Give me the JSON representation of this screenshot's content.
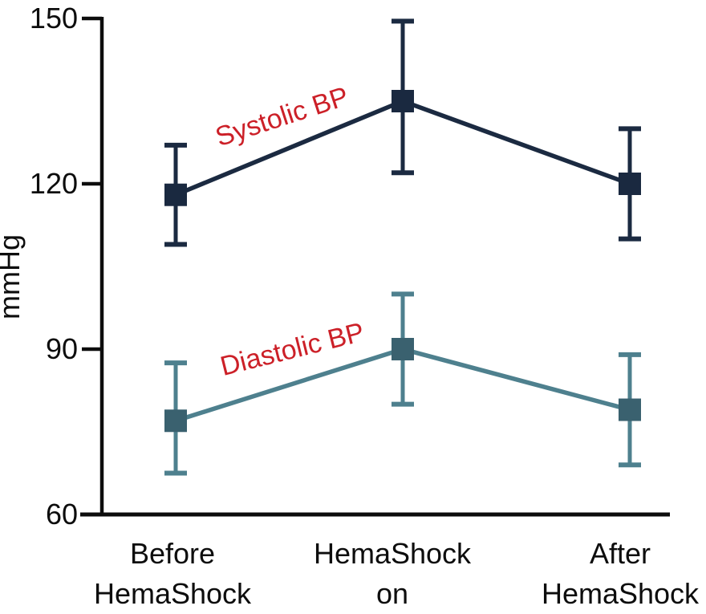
{
  "chart_data": {
    "type": "line",
    "title": "",
    "xlabel": "",
    "ylabel": "mmHg",
    "categories": [
      [
        "Before",
        "HemaShock"
      ],
      [
        "HemaShock",
        "on"
      ],
      [
        "After",
        "HemaShock"
      ]
    ],
    "yticks": [
      150,
      120,
      90,
      60
    ],
    "ylim": [
      60,
      150
    ],
    "grid": false,
    "legend": "inline rotated series labels",
    "axis_color": "#0d0d0d",
    "text_color": "#0d0d0d",
    "series": [
      {
        "name": "Systolic BP",
        "values": [
          118,
          135,
          120
        ],
        "err_up": [
          9,
          14.5,
          10
        ],
        "err_down": [
          9,
          13,
          10
        ],
        "line_color": "#1b2a41",
        "marker_color": "#1a2940",
        "marker": "square",
        "label_color": "#cc2028",
        "label_rotation_deg": -18
      },
      {
        "name": "Diastolic BP",
        "values": [
          77,
          90,
          79
        ],
        "err_up": [
          10.5,
          10,
          10
        ],
        "err_down": [
          9.5,
          10,
          10
        ],
        "line_color": "#4e808e",
        "marker_color": "#3a616f",
        "marker": "square",
        "label_color": "#cc2028",
        "label_rotation_deg": -14
      }
    ]
  }
}
